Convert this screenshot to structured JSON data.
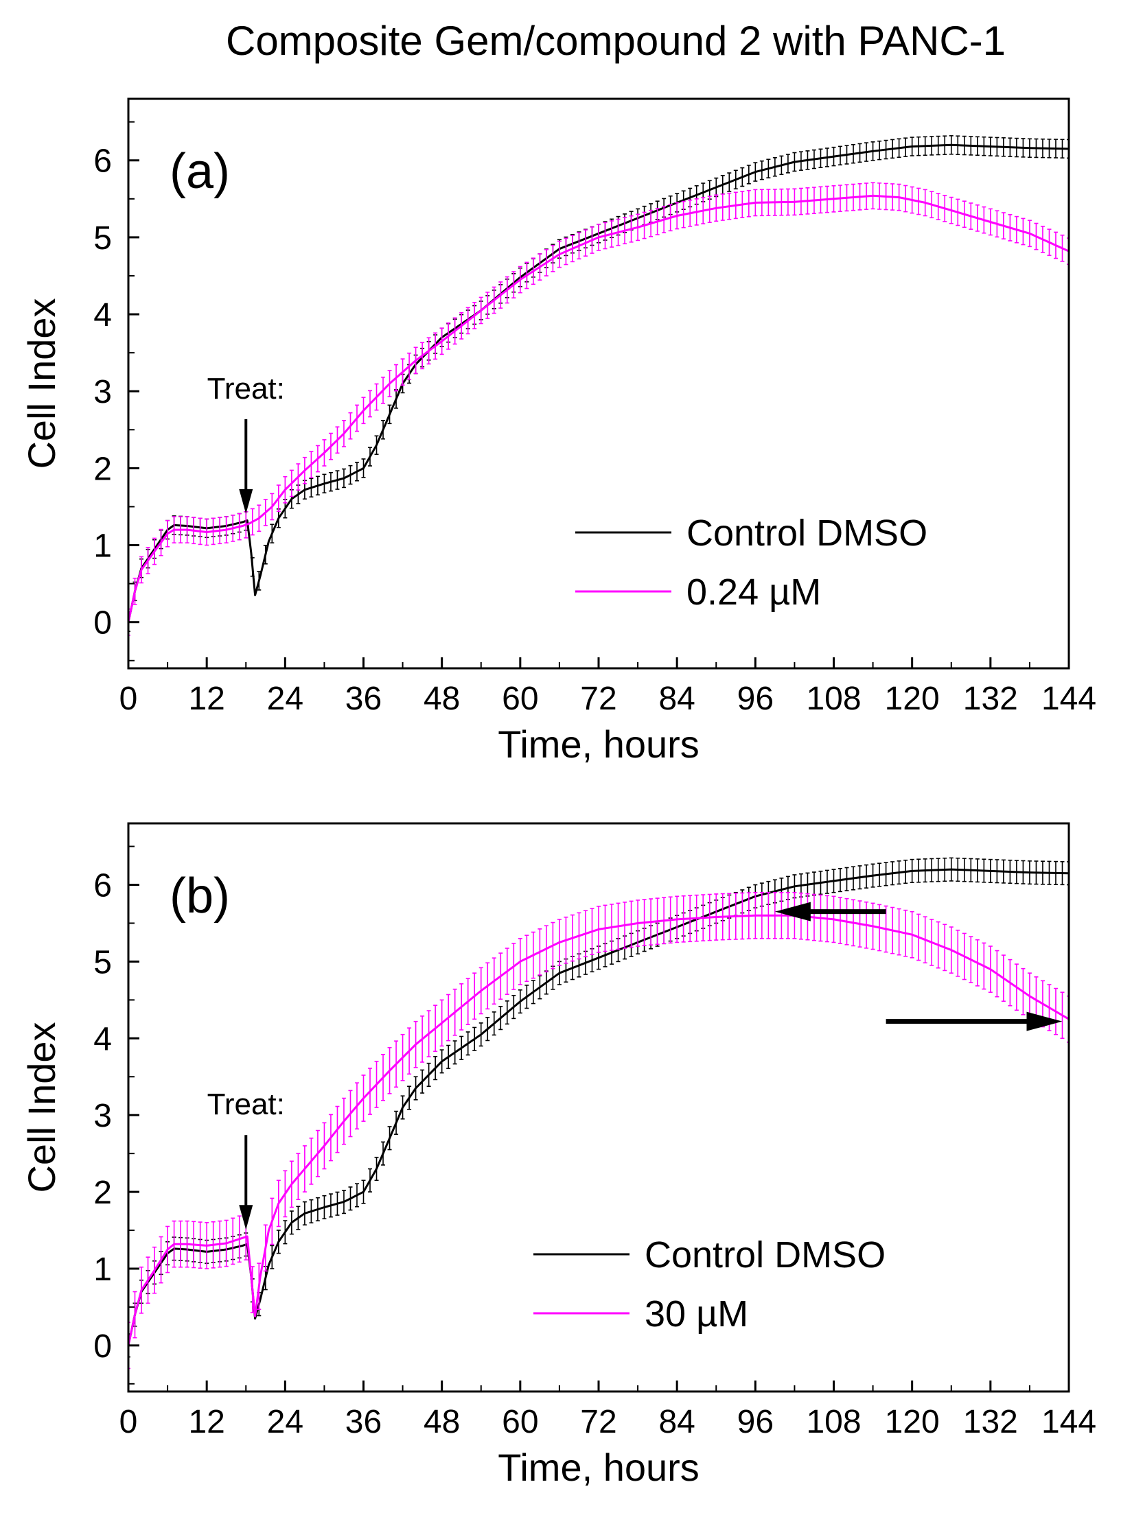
{
  "figure_title": "Composite Gem/compound 2 with PANC-1",
  "colors": {
    "control": "#000000",
    "treated": "#ff00ff"
  },
  "chart_data": [
    {
      "type": "line",
      "panel_label": "(a)",
      "title": "",
      "xlabel": "Time, hours",
      "ylabel": "Cell Index",
      "xlim": [
        0,
        144
      ],
      "ylim": [
        -0.6,
        6.8
      ],
      "xticks": [
        0,
        12,
        24,
        36,
        48,
        60,
        72,
        84,
        96,
        108,
        120,
        132,
        144
      ],
      "yticks": [
        0,
        1,
        2,
        3,
        4,
        5,
        6
      ],
      "grid": false,
      "legend_position": "bottom-right",
      "annotation": {
        "text": "Treat:",
        "x": 18,
        "y": 1.3
      },
      "series": [
        {
          "name": "Control DMSO",
          "color": "#000000",
          "points": [
            [
              0,
              0
            ],
            [
              1,
              0.4
            ],
            [
              2,
              0.7
            ],
            [
              4,
              0.95
            ],
            [
              6,
              1.2
            ],
            [
              7,
              1.26
            ],
            [
              9,
              1.25
            ],
            [
              12,
              1.22
            ],
            [
              15,
              1.25
            ],
            [
              17.5,
              1.3
            ],
            [
              18.2,
              1.32
            ],
            [
              18.8,
              0.9
            ],
            [
              19.4,
              0.35
            ],
            [
              20.2,
              0.6
            ],
            [
              21.5,
              1.05
            ],
            [
              23,
              1.35
            ],
            [
              25,
              1.6
            ],
            [
              27,
              1.72
            ],
            [
              30,
              1.8
            ],
            [
              33,
              1.87
            ],
            [
              36,
              2.0
            ],
            [
              38,
              2.3
            ],
            [
              40,
              2.7
            ],
            [
              42,
              3.1
            ],
            [
              44,
              3.35
            ],
            [
              48,
              3.7
            ],
            [
              54,
              4.05
            ],
            [
              60,
              4.48
            ],
            [
              66,
              4.85
            ],
            [
              72,
              5.05
            ],
            [
              78,
              5.25
            ],
            [
              84,
              5.45
            ],
            [
              90,
              5.65
            ],
            [
              96,
              5.85
            ],
            [
              102,
              5.98
            ],
            [
              108,
              6.05
            ],
            [
              114,
              6.12
            ],
            [
              120,
              6.18
            ],
            [
              126,
              6.2
            ],
            [
              132,
              6.18
            ],
            [
              138,
              6.16
            ],
            [
              144,
              6.15
            ]
          ],
          "error": 0.12
        },
        {
          "name": "0.24 µM",
          "color": "#ff00ff",
          "points": [
            [
              0,
              0
            ],
            [
              1,
              0.4
            ],
            [
              2,
              0.68
            ],
            [
              4,
              0.92
            ],
            [
              6,
              1.15
            ],
            [
              7,
              1.2
            ],
            [
              9,
              1.2
            ],
            [
              12,
              1.17
            ],
            [
              15,
              1.2
            ],
            [
              17.5,
              1.25
            ],
            [
              18.5,
              1.28
            ],
            [
              20,
              1.35
            ],
            [
              22,
              1.5
            ],
            [
              24,
              1.72
            ],
            [
              27,
              1.97
            ],
            [
              30,
              2.2
            ],
            [
              33,
              2.45
            ],
            [
              36,
              2.75
            ],
            [
              40,
              3.1
            ],
            [
              44,
              3.4
            ],
            [
              48,
              3.65
            ],
            [
              54,
              4.05
            ],
            [
              60,
              4.45
            ],
            [
              66,
              4.78
            ],
            [
              72,
              5.0
            ],
            [
              78,
              5.13
            ],
            [
              84,
              5.28
            ],
            [
              90,
              5.38
            ],
            [
              96,
              5.45
            ],
            [
              102,
              5.46
            ],
            [
              108,
              5.5
            ],
            [
              114,
              5.54
            ],
            [
              118,
              5.52
            ],
            [
              122,
              5.45
            ],
            [
              126,
              5.35
            ],
            [
              132,
              5.2
            ],
            [
              138,
              5.05
            ],
            [
              144,
              4.82
            ]
          ],
          "error": 0.17
        }
      ]
    },
    {
      "type": "line",
      "panel_label": "(b)",
      "title": "",
      "xlabel": "Time, hours",
      "ylabel": "Cell Index",
      "xlim": [
        0,
        144
      ],
      "ylim": [
        -0.6,
        6.8
      ],
      "xticks": [
        0,
        12,
        24,
        36,
        48,
        60,
        72,
        84,
        96,
        108,
        120,
        132,
        144
      ],
      "yticks": [
        0,
        1,
        2,
        3,
        4,
        5,
        6
      ],
      "grid": false,
      "legend_position": "bottom-right",
      "annotation": {
        "text": "Treat:",
        "x": 18,
        "y": 1.4
      },
      "arrows": [
        {
          "from": [
            116,
            5.65
          ],
          "to": [
            99,
            5.65
          ],
          "direction": "left"
        },
        {
          "from": [
            116,
            4.22
          ],
          "to": [
            143,
            4.22
          ],
          "direction": "right"
        }
      ],
      "series": [
        {
          "name": "Control DMSO",
          "color": "#000000",
          "points": [
            [
              0,
              0
            ],
            [
              1,
              0.4
            ],
            [
              2,
              0.7
            ],
            [
              4,
              0.95
            ],
            [
              6,
              1.2
            ],
            [
              7,
              1.26
            ],
            [
              9,
              1.25
            ],
            [
              12,
              1.22
            ],
            [
              15,
              1.25
            ],
            [
              17.5,
              1.3
            ],
            [
              18.2,
              1.32
            ],
            [
              18.8,
              0.9
            ],
            [
              19.4,
              0.35
            ],
            [
              20.2,
              0.6
            ],
            [
              21.5,
              1.05
            ],
            [
              23,
              1.35
            ],
            [
              25,
              1.6
            ],
            [
              27,
              1.72
            ],
            [
              30,
              1.8
            ],
            [
              33,
              1.87
            ],
            [
              36,
              2.0
            ],
            [
              38,
              2.3
            ],
            [
              40,
              2.7
            ],
            [
              42,
              3.1
            ],
            [
              44,
              3.35
            ],
            [
              48,
              3.7
            ],
            [
              54,
              4.05
            ],
            [
              60,
              4.48
            ],
            [
              66,
              4.85
            ],
            [
              72,
              5.05
            ],
            [
              78,
              5.25
            ],
            [
              84,
              5.45
            ],
            [
              90,
              5.65
            ],
            [
              96,
              5.85
            ],
            [
              102,
              5.98
            ],
            [
              108,
              6.05
            ],
            [
              114,
              6.12
            ],
            [
              120,
              6.18
            ],
            [
              126,
              6.2
            ],
            [
              132,
              6.18
            ],
            [
              138,
              6.16
            ],
            [
              144,
              6.15
            ]
          ],
          "error": 0.15
        },
        {
          "name": "30 µM",
          "color": "#ff00ff",
          "points": [
            [
              0,
              0
            ],
            [
              1,
              0.4
            ],
            [
              2,
              0.72
            ],
            [
              4,
              0.98
            ],
            [
              6,
              1.25
            ],
            [
              7,
              1.32
            ],
            [
              9,
              1.32
            ],
            [
              12,
              1.3
            ],
            [
              15,
              1.33
            ],
            [
              17.5,
              1.4
            ],
            [
              18.2,
              1.42
            ],
            [
              18.8,
              0.9
            ],
            [
              19.4,
              0.38
            ],
            [
              20.2,
              0.9
            ],
            [
              21.5,
              1.5
            ],
            [
              23,
              1.85
            ],
            [
              25,
              2.1
            ],
            [
              28,
              2.4
            ],
            [
              30,
              2.6
            ],
            [
              33,
              2.92
            ],
            [
              36,
              3.22
            ],
            [
              40,
              3.58
            ],
            [
              44,
              3.92
            ],
            [
              48,
              4.2
            ],
            [
              54,
              4.62
            ],
            [
              60,
              5.0
            ],
            [
              66,
              5.25
            ],
            [
              72,
              5.42
            ],
            [
              78,
              5.5
            ],
            [
              84,
              5.55
            ],
            [
              90,
              5.58
            ],
            [
              96,
              5.6
            ],
            [
              102,
              5.6
            ],
            [
              108,
              5.55
            ],
            [
              114,
              5.46
            ],
            [
              120,
              5.35
            ],
            [
              126,
              5.15
            ],
            [
              132,
              4.9
            ],
            [
              138,
              4.55
            ],
            [
              144,
              4.25
            ]
          ],
          "error": 0.3
        }
      ]
    }
  ]
}
